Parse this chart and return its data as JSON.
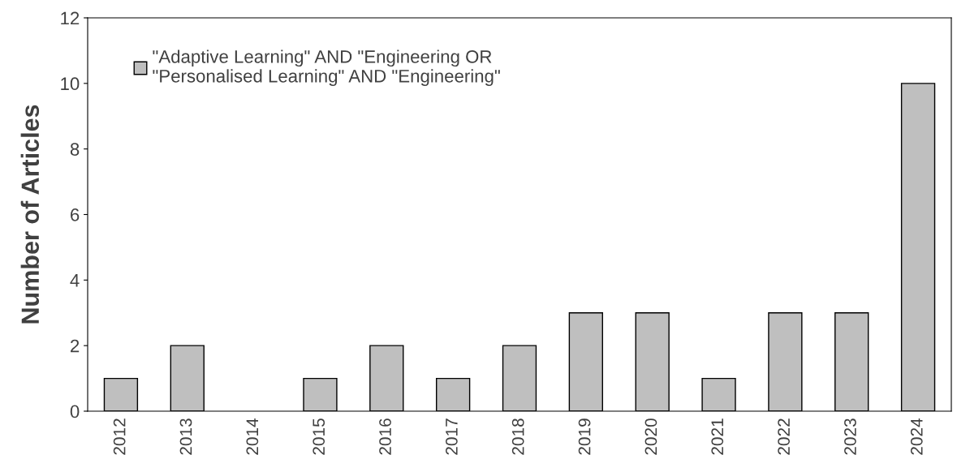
{
  "chart_data": {
    "type": "bar",
    "ylabel": "Number of Articles",
    "categories": [
      "2012",
      "2013",
      "2014",
      "2015",
      "2016",
      "2017",
      "2018",
      "2019",
      "2020",
      "2021",
      "2022",
      "2023",
      "2024"
    ],
    "series": [
      {
        "name": "\"Adaptive Learning\" AND \"Engineering OR\n\"Personalised Learning\" AND \"Engineering\"",
        "color": "#bfbfbf",
        "values": [
          1,
          2,
          0,
          1,
          2,
          1,
          2,
          3,
          3,
          1,
          3,
          3,
          10
        ]
      }
    ],
    "ylim": [
      0,
      12
    ],
    "yticks": [
      0,
      2,
      4,
      6,
      8,
      10,
      12
    ],
    "grid": false,
    "legend": "top left"
  }
}
